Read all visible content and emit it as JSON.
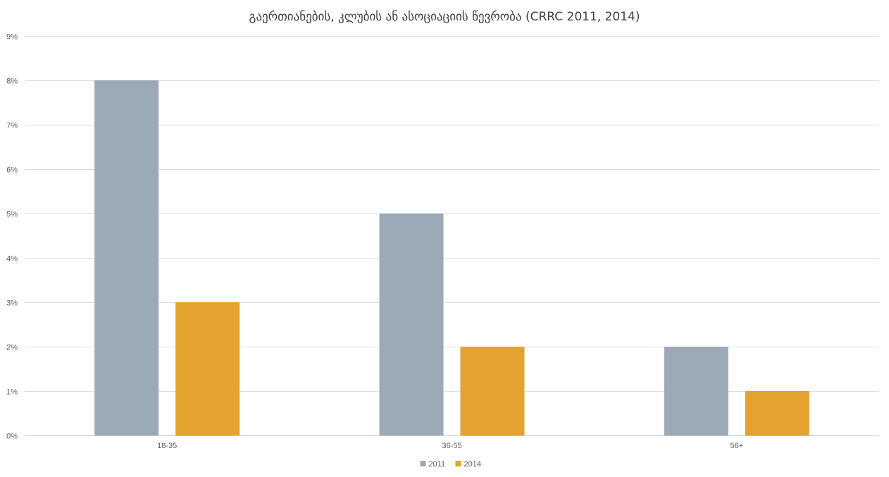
{
  "chart_data": {
    "type": "bar",
    "title": "გაერთიანების, კლუბის ან ასოციაციის წევრობა (CRRC 2011, 2014)",
    "categories": [
      "18-35",
      "36-55",
      "56+"
    ],
    "series": [
      {
        "name": "2011",
        "values": [
          8,
          5,
          2
        ],
        "color": "#9ca9b6"
      },
      {
        "name": "2014",
        "values": [
          3,
          2,
          1
        ],
        "color": "#e4a22f"
      }
    ],
    "ylim": [
      0,
      9
    ],
    "yticks": [
      0,
      1,
      2,
      3,
      4,
      5,
      6,
      7,
      8,
      9
    ],
    "ytick_labels": [
      "0%",
      "1%",
      "2%",
      "3%",
      "4%",
      "5%",
      "6%",
      "7%",
      "8%",
      "9%"
    ],
    "grid": true,
    "legend_position": "bottom",
    "xlabel": "",
    "ylabel": ""
  }
}
